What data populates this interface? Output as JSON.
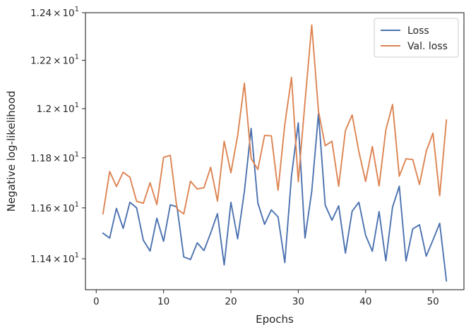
{
  "chart_data": {
    "type": "line",
    "title": "",
    "xlabel": "Epochs",
    "ylabel": "Negative log-likelihood",
    "xlim": [
      -1.6,
      54.6
    ],
    "ylim": [
      11.28,
      12.4
    ],
    "y_scale": "log",
    "xticks": [
      0,
      10,
      20,
      30,
      40,
      50
    ],
    "yticks": [
      11.4,
      11.6,
      11.8,
      12.0,
      12.2,
      12.4
    ],
    "ytick_labels": [
      {
        "mantissa": "1.14",
        "times": "×",
        "base": "10",
        "exp": "1"
      },
      {
        "mantissa": "1.16",
        "times": "×",
        "base": "10",
        "exp": "1"
      },
      {
        "mantissa": "1.18",
        "times": "×",
        "base": "10",
        "exp": "1"
      },
      {
        "mantissa": "1.2",
        "times": "×",
        "base": "10",
        "exp": "1"
      },
      {
        "mantissa": "1.22",
        "times": "×",
        "base": "10",
        "exp": "1"
      },
      {
        "mantissa": "1.24",
        "times": "×",
        "base": "10",
        "exp": "1"
      }
    ],
    "grid": false,
    "legend_position": "top-right",
    "x": [
      1,
      2,
      3,
      4,
      5,
      6,
      7,
      8,
      9,
      10,
      11,
      12,
      13,
      14,
      15,
      16,
      17,
      18,
      19,
      20,
      21,
      22,
      23,
      24,
      25,
      26,
      27,
      28,
      29,
      30,
      31,
      32,
      33,
      34,
      35,
      36,
      37,
      38,
      39,
      40,
      41,
      42,
      43,
      44,
      45,
      46,
      47,
      48,
      49,
      50,
      51,
      52
    ],
    "series": [
      {
        "name": "Loss",
        "color": "#4c72b0",
        "values": [
          11.5,
          11.481,
          11.598,
          11.519,
          11.622,
          11.6,
          11.472,
          11.43,
          11.559,
          11.468,
          11.612,
          11.604,
          11.407,
          11.397,
          11.462,
          11.432,
          11.501,
          11.577,
          11.376,
          11.622,
          11.478,
          11.665,
          11.919,
          11.619,
          11.535,
          11.592,
          11.564,
          11.385,
          11.729,
          11.942,
          11.481,
          11.665,
          11.98,
          11.611,
          11.551,
          11.608,
          11.422,
          11.587,
          11.622,
          11.492,
          11.429,
          11.585,
          11.392,
          11.603,
          11.686,
          11.391,
          11.517,
          11.533,
          11.41,
          11.473,
          11.539,
          11.314
        ]
      },
      {
        "name": "Val. loss",
        "color": "#dd8452",
        "values": [
          11.576,
          11.745,
          11.685,
          11.742,
          11.722,
          11.626,
          11.618,
          11.7,
          11.613,
          11.802,
          11.81,
          11.595,
          11.576,
          11.706,
          11.675,
          11.68,
          11.762,
          11.627,
          11.867,
          11.74,
          11.89,
          12.105,
          11.798,
          11.753,
          11.891,
          11.889,
          11.67,
          11.935,
          12.129,
          11.704,
          12.027,
          12.348,
          11.99,
          11.849,
          11.867,
          11.686,
          11.91,
          11.974,
          11.825,
          11.705,
          11.846,
          11.687,
          11.912,
          12.017,
          11.726,
          11.796,
          11.793,
          11.693,
          11.826,
          11.9,
          11.648,
          11.954
        ]
      }
    ]
  }
}
